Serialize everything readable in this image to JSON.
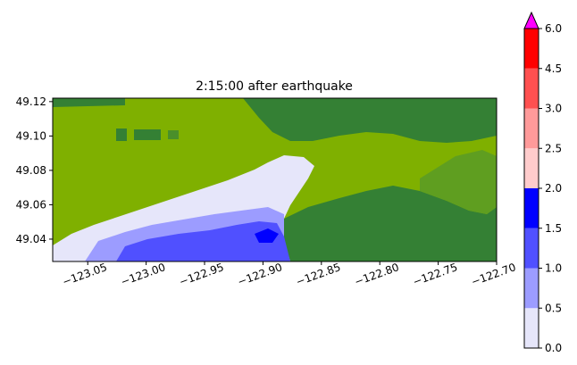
{
  "chart_data": {
    "type": "heatmap",
    "title": "2:15:00 after earthquake",
    "xlabel": "",
    "ylabel": "",
    "xlim": [
      -123.08,
      -122.7
    ],
    "ylim": [
      49.027,
      49.122
    ],
    "x_ticks": [
      -123.05,
      -123.0,
      -122.95,
      -122.9,
      -122.85,
      -122.8,
      -122.75,
      -122.7
    ],
    "x_tick_labels": [
      "−123.05",
      "−123.00",
      "−122.95",
      "−122.90",
      "−122.85",
      "−122.80",
      "−122.75",
      "−122.70"
    ],
    "y_ticks": [
      49.04,
      49.06,
      49.08,
      49.1,
      49.12
    ],
    "y_tick_labels": [
      "49.04",
      "49.06",
      "49.08",
      "49.10",
      "49.12"
    ],
    "colorbar": {
      "ticks": [
        0.0,
        0.5,
        1.0,
        1.5,
        2.0,
        2.5,
        3.0,
        4.5,
        6.0
      ],
      "tick_labels": [
        "0.0",
        "0.5",
        "1.0",
        "1.5",
        "2.0",
        "2.5",
        "3.0",
        "4.5",
        "6.0"
      ],
      "colors": [
        "#e6e6fa",
        "#9c9cff",
        "#5050ff",
        "#0000ff",
        "#ffcccc",
        "#ff9a9a",
        "#ff5050",
        "#ff0000"
      ],
      "extend_max_color": "#ff00ff"
    },
    "land_colors": {
      "lowland": "#7fb000",
      "highland": "#348034"
    }
  }
}
